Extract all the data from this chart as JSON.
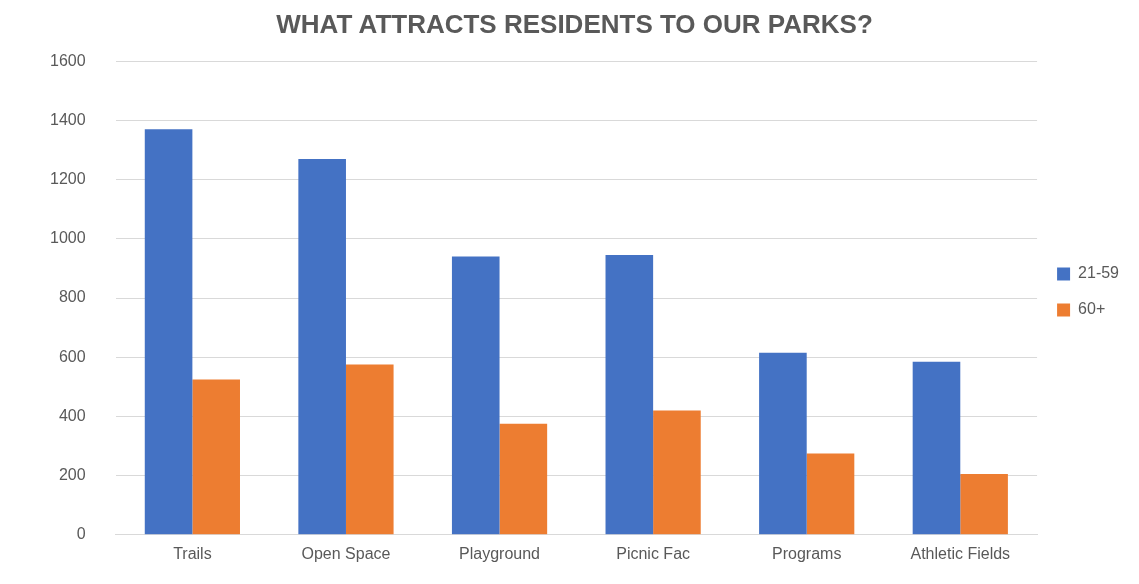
{
  "chart_data": {
    "type": "bar",
    "title": "WHAT ATTRACTS RESIDENTS TO OUR PARKS?",
    "categories": [
      "Trails",
      "Open Space",
      "Playground",
      "Picnic Fac",
      "Programs",
      "Athletic Fields"
    ],
    "series": [
      {
        "name": "21-59",
        "color": "#4472c4",
        "values": [
          1370,
          1270,
          940,
          945,
          615,
          585
        ]
      },
      {
        "name": "60+",
        "color": "#ed7d31",
        "values": [
          525,
          575,
          375,
          420,
          275,
          205
        ]
      }
    ],
    "ylim": [
      0,
      1600
    ],
    "yticks": [
      0,
      200,
      400,
      600,
      800,
      1000,
      1200,
      1400,
      1600
    ],
    "grid": "y",
    "legend": "right"
  }
}
